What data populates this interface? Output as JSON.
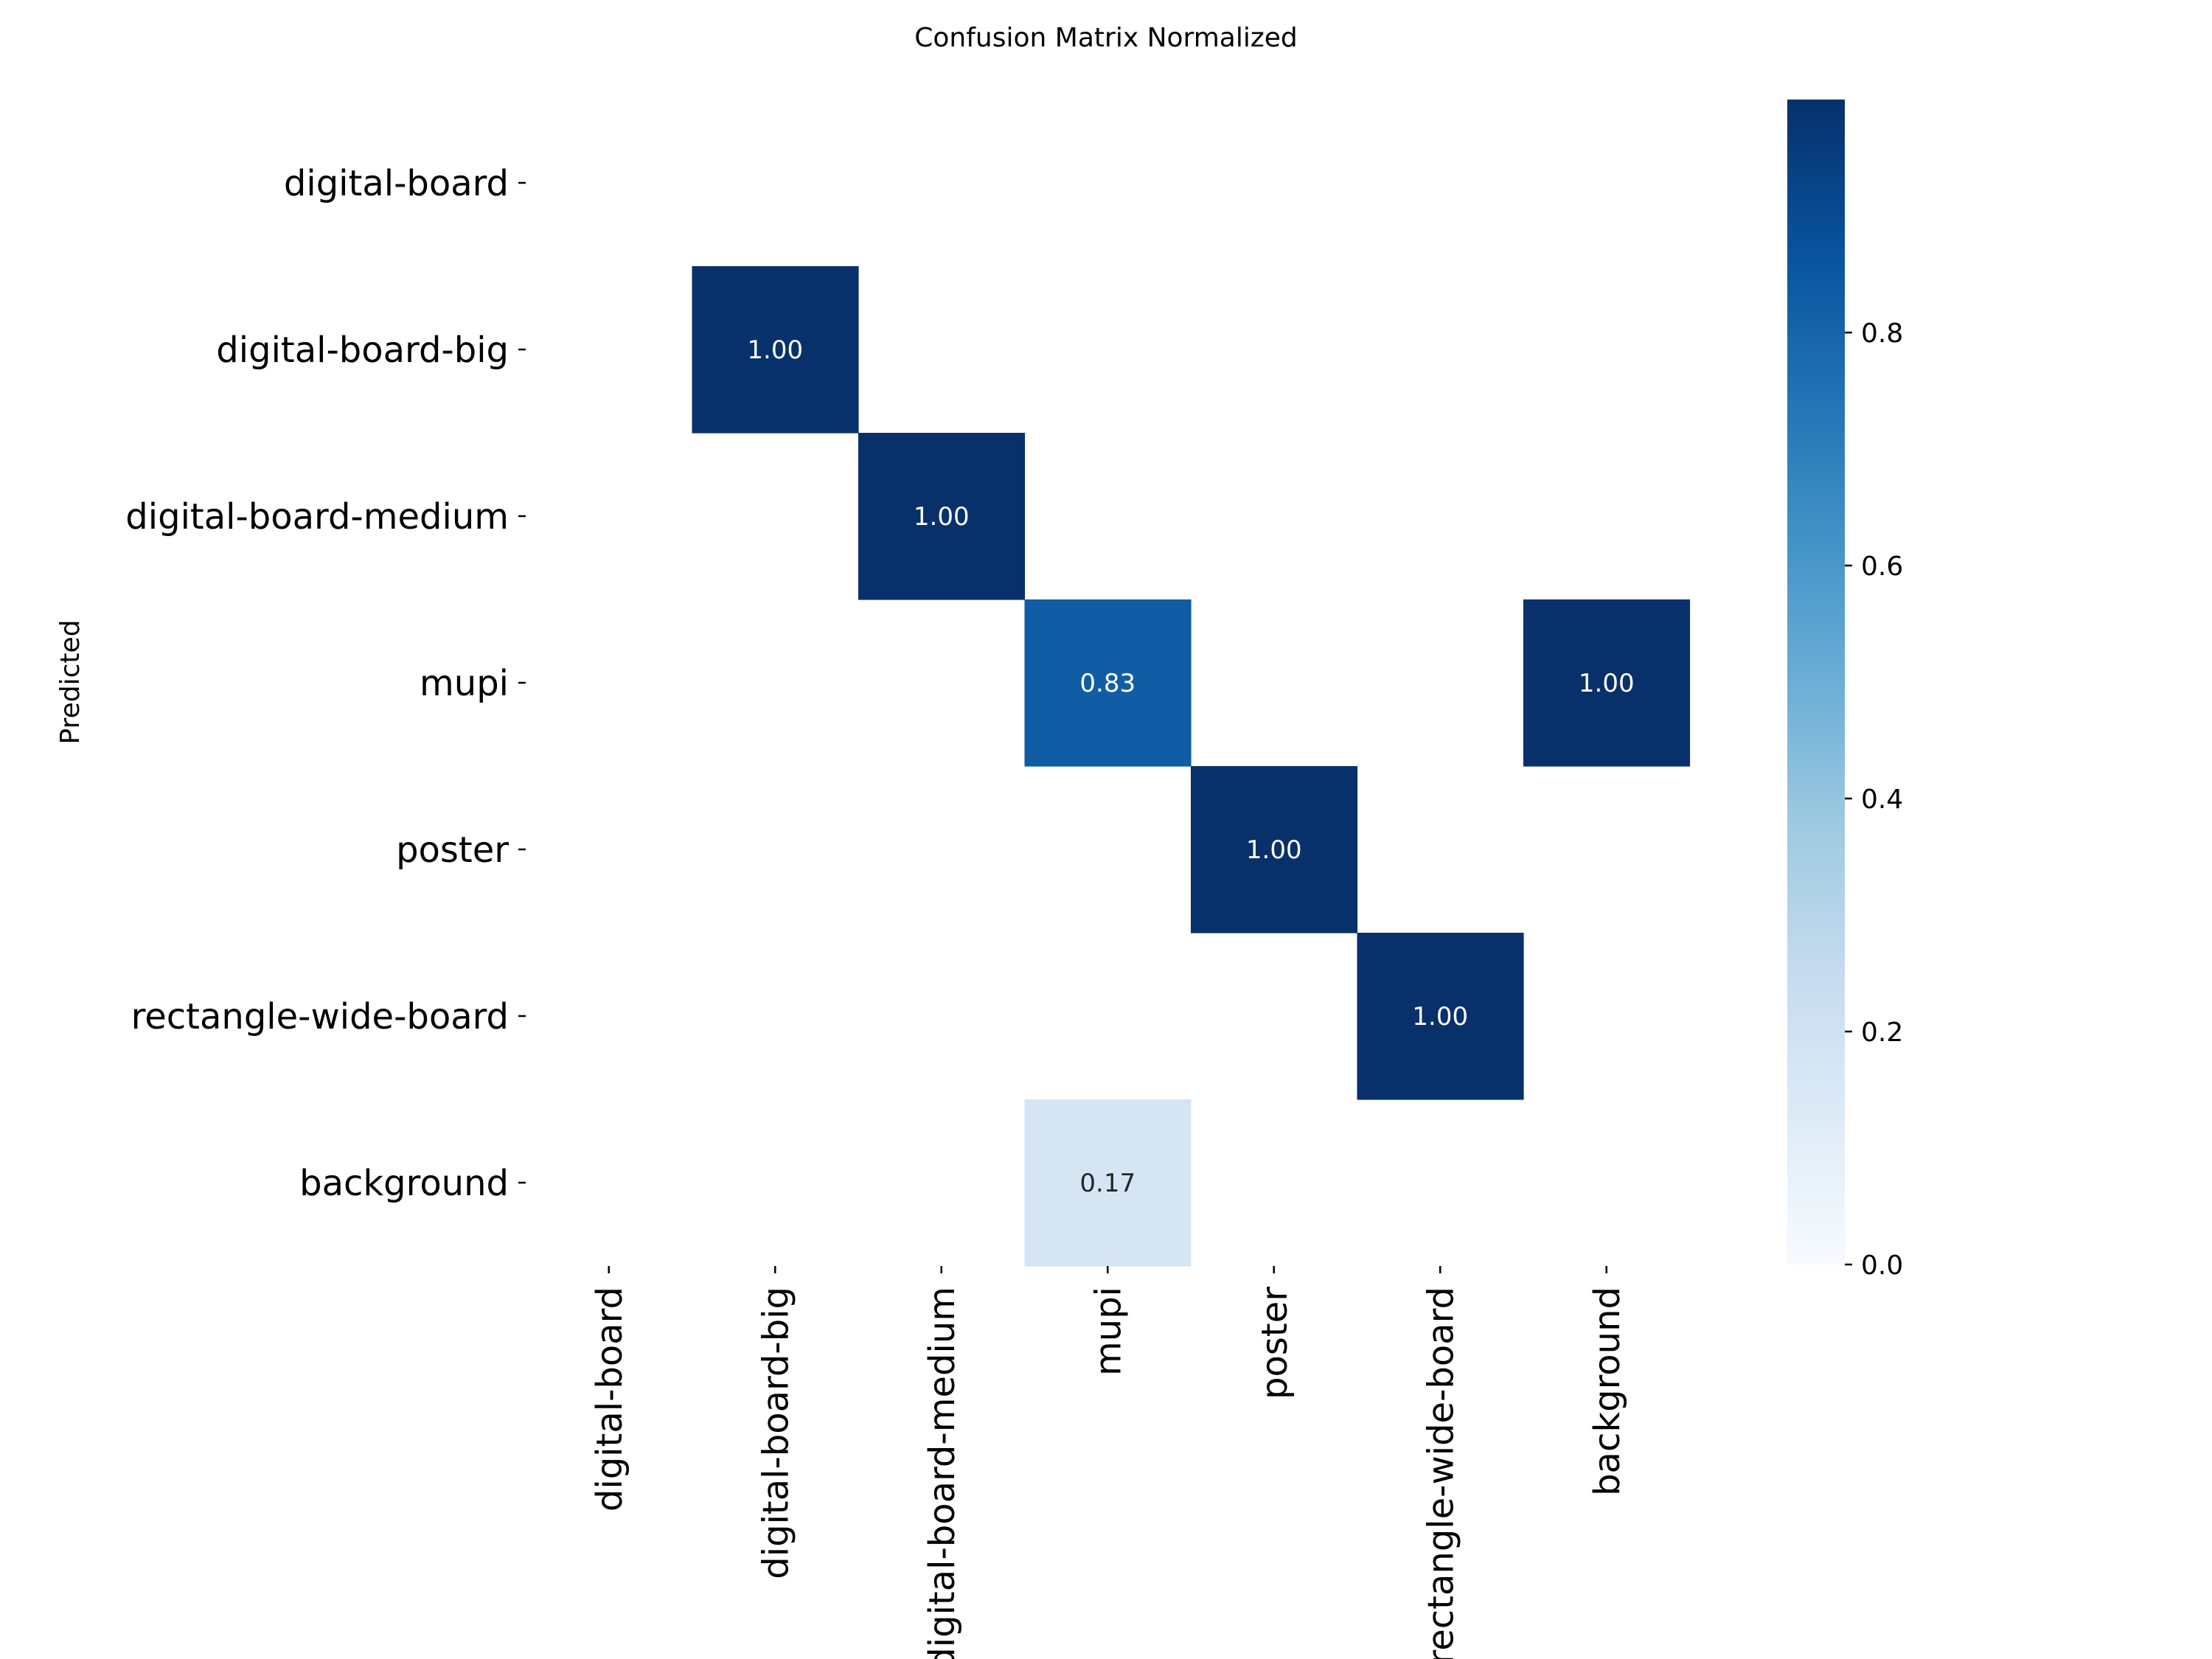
{
  "chart_data": {
    "type": "heatmap",
    "title": "Confusion Matrix Normalized",
    "xlabel": "",
    "ylabel": "Predicted",
    "categories": [
      "digital-board",
      "digital-board-big",
      "digital-board-medium",
      "mupi",
      "poster",
      "rectangle-wide-board",
      "background"
    ],
    "x_categories": [
      "digital-board",
      "digital-board-big",
      "digital-board-medium",
      "mupi",
      "poster",
      "rectangle-wide-board",
      "background"
    ],
    "y_categories": [
      "digital-board",
      "digital-board-big",
      "digital-board-medium",
      "mupi",
      "poster",
      "rectangle-wide-board",
      "background"
    ],
    "matrix": [
      [
        null,
        null,
        null,
        null,
        null,
        null,
        null
      ],
      [
        null,
        1.0,
        null,
        null,
        null,
        null,
        null
      ],
      [
        null,
        null,
        1.0,
        null,
        null,
        null,
        null
      ],
      [
        null,
        null,
        null,
        0.83,
        null,
        null,
        1.0
      ],
      [
        null,
        null,
        null,
        null,
        1.0,
        null,
        null
      ],
      [
        null,
        null,
        null,
        null,
        null,
        1.0,
        null
      ],
      [
        null,
        null,
        null,
        0.17,
        null,
        null,
        null
      ]
    ],
    "cell_labels": [
      [
        "",
        "",
        "",
        "",
        "",
        "",
        ""
      ],
      [
        "",
        "1.00",
        "",
        "",
        "",
        "",
        ""
      ],
      [
        "",
        "",
        "1.00",
        "",
        "",
        "",
        ""
      ],
      [
        "",
        "",
        "",
        "0.83",
        "",
        "",
        "1.00"
      ],
      [
        "",
        "",
        "",
        "",
        "1.00",
        "",
        ""
      ],
      [
        "",
        "",
        "",
        "",
        "",
        "1.00",
        ""
      ],
      [
        "",
        "",
        "",
        "0.17",
        "",
        "",
        ""
      ]
    ],
    "colormap": "Blues",
    "colorbar": {
      "range": [
        0.0,
        1.0
      ],
      "ticks": [
        0.0,
        0.2,
        0.4,
        0.6,
        0.8
      ],
      "tick_labels": [
        "0.0",
        "0.2",
        "0.4",
        "0.6",
        "0.8"
      ]
    },
    "grid": false,
    "legend": "colorbar-right"
  }
}
